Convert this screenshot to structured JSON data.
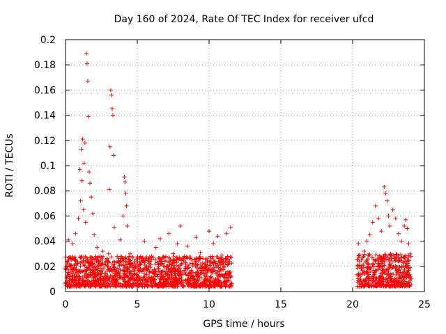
{
  "chart_data": {
    "type": "scatter",
    "title": "Day 160 of 2024, Rate Of TEC Index for receiver ufcd",
    "xlabel": "GPS time / hours",
    "ylabel": "ROTI / TECUs",
    "xlim": [
      0,
      25
    ],
    "ylim": [
      0,
      0.2
    ],
    "xticks": [
      0,
      5,
      10,
      15,
      20,
      25
    ],
    "xtick_labels": [
      "0",
      "5",
      "10",
      "15",
      "20",
      "25"
    ],
    "yticks": [
      0,
      0.02,
      0.04,
      0.06,
      0.08,
      0.1,
      0.12,
      0.14,
      0.16,
      0.18,
      0.2
    ],
    "ytick_labels": [
      "0",
      "0.02",
      "0.04",
      "0.06",
      "0.08",
      "0.1",
      "0.12",
      "0.14",
      "0.16",
      "0.18",
      "0.2"
    ],
    "grid": true,
    "marker": "+",
    "marker_color": "#ff0000",
    "series": [
      {
        "name": "ROTI",
        "points": [
          [
            0.1,
            0.018
          ],
          [
            0.2,
            0.041
          ],
          [
            0.3,
            0.012
          ],
          [
            0.4,
            0.025
          ],
          [
            0.5,
            0.038
          ],
          [
            0.6,
            0.021
          ],
          [
            0.7,
            0.046
          ],
          [
            0.8,
            0.015
          ],
          [
            0.9,
            0.058
          ],
          [
            1.0,
            0.097
          ],
          [
            1.05,
            0.072
          ],
          [
            1.1,
            0.113
          ],
          [
            1.15,
            0.088
          ],
          [
            1.2,
            0.121
          ],
          [
            1.25,
            0.065
          ],
          [
            1.3,
            0.102
          ],
          [
            1.35,
            0.118
          ],
          [
            1.4,
            0.055
          ],
          [
            1.45,
            0.189
          ],
          [
            1.5,
            0.181
          ],
          [
            1.55,
            0.167
          ],
          [
            1.6,
            0.139
          ],
          [
            1.65,
            0.095
          ],
          [
            1.7,
            0.086
          ],
          [
            1.8,
            0.075
          ],
          [
            1.9,
            0.062
          ],
          [
            2.0,
            0.045
          ],
          [
            2.2,
            0.035
          ],
          [
            2.4,
            0.028
          ],
          [
            2.6,
            0.032
          ],
          [
            2.8,
            0.024
          ],
          [
            3.0,
            0.03
          ],
          [
            3.05,
            0.081
          ],
          [
            3.1,
            0.115
          ],
          [
            3.15,
            0.16
          ],
          [
            3.2,
            0.156
          ],
          [
            3.25,
            0.145
          ],
          [
            3.3,
            0.14
          ],
          [
            3.35,
            0.108
          ],
          [
            3.4,
            0.051
          ],
          [
            3.6,
            0.028
          ],
          [
            3.8,
            0.041
          ],
          [
            4.0,
            0.06
          ],
          [
            4.1,
            0.091
          ],
          [
            4.15,
            0.087
          ],
          [
            4.2,
            0.078
          ],
          [
            4.25,
            0.068
          ],
          [
            4.3,
            0.052
          ],
          [
            4.5,
            0.03
          ],
          [
            4.8,
            0.022
          ],
          [
            5.0,
            0.018
          ],
          [
            5.3,
            0.026
          ],
          [
            5.5,
            0.04
          ],
          [
            5.8,
            0.02
          ],
          [
            6.0,
            0.028
          ],
          [
            6.3,
            0.035
          ],
          [
            6.6,
            0.042
          ],
          [
            6.9,
            0.024
          ],
          [
            7.2,
            0.046
          ],
          [
            7.5,
            0.03
          ],
          [
            7.8,
            0.038
          ],
          [
            8.0,
            0.052
          ],
          [
            8.2,
            0.027
          ],
          [
            8.5,
            0.036
          ],
          [
            8.8,
            0.025
          ],
          [
            9.1,
            0.043
          ],
          [
            9.4,
            0.031
          ],
          [
            9.7,
            0.022
          ],
          [
            10.0,
            0.048
          ],
          [
            10.3,
            0.038
          ],
          [
            10.6,
            0.044
          ],
          [
            10.9,
            0.029
          ],
          [
            11.2,
            0.046
          ],
          [
            11.5,
            0.051
          ],
          [
            20.4,
            0.038
          ],
          [
            20.6,
            0.025
          ],
          [
            20.8,
            0.032
          ],
          [
            21.0,
            0.04
          ],
          [
            21.2,
            0.045
          ],
          [
            21.4,
            0.055
          ],
          [
            21.6,
            0.068
          ],
          [
            21.8,
            0.058
          ],
          [
            22.0,
            0.048
          ],
          [
            22.2,
            0.083
          ],
          [
            22.3,
            0.078
          ],
          [
            22.4,
            0.072
          ],
          [
            22.5,
            0.06
          ],
          [
            22.6,
            0.052
          ],
          [
            22.8,
            0.065
          ],
          [
            23.0,
            0.058
          ],
          [
            23.2,
            0.046
          ],
          [
            23.4,
            0.04
          ],
          [
            23.6,
            0.052
          ],
          [
            23.7,
            0.057
          ],
          [
            23.8,
            0.05
          ],
          [
            23.9,
            0.038
          ],
          [
            24.0,
            0.03
          ]
        ]
      }
    ],
    "dense_ranges": [
      {
        "x": [
          0.0,
          11.6
        ],
        "y_floor": 0.004,
        "y_band_top": 0.028
      },
      {
        "x": [
          20.3,
          24.1
        ],
        "y_floor": 0.004,
        "y_band_top": 0.03
      }
    ]
  }
}
